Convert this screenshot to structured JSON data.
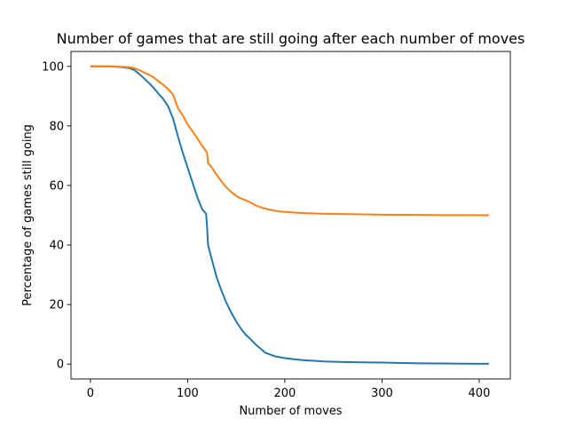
{
  "chart_data": {
    "type": "line",
    "title": "Number of games that are still going after each number of moves",
    "xlabel": "Number of moves",
    "ylabel": "Percentage of games still going",
    "xlim": [
      -20,
      432
    ],
    "ylim": [
      -5,
      105
    ],
    "xticks": [
      0,
      100,
      200,
      300,
      400
    ],
    "yticks": [
      0,
      20,
      40,
      60,
      80,
      100
    ],
    "grid": false,
    "legend": "none",
    "series": [
      {
        "color": "#1f77b4",
        "x": [
          0,
          10,
          20,
          30,
          40,
          45,
          50,
          55,
          60,
          65,
          70,
          75,
          80,
          85,
          90,
          95,
          100,
          105,
          110,
          115,
          119,
          120,
          121,
          125,
          130,
          135,
          140,
          145,
          150,
          155,
          160,
          165,
          170,
          175,
          180,
          190,
          200,
          210,
          220,
          230,
          240,
          260,
          280,
          300,
          320,
          340,
          360,
          380,
          400,
          410
        ],
        "values": [
          100,
          100,
          100,
          99.8,
          99.4,
          98.8,
          97.5,
          96,
          94.5,
          92.8,
          90.8,
          89,
          86.5,
          82.5,
          76.5,
          71,
          66,
          61,
          56,
          52,
          50.5,
          46,
          40,
          35,
          29,
          24.5,
          20.5,
          17.2,
          14.3,
          11.8,
          9.8,
          8.3,
          6.6,
          5.2,
          3.8,
          2.6,
          2,
          1.6,
          1.3,
          1.1,
          0.9,
          0.7,
          0.6,
          0.5,
          0.35,
          0.25,
          0.2,
          0.15,
          0.1,
          0.1
        ]
      },
      {
        "color": "#ff7f0e",
        "x": [
          0,
          10,
          20,
          30,
          40,
          45,
          50,
          55,
          60,
          65,
          70,
          75,
          80,
          85,
          90,
          95,
          100,
          105,
          110,
          115,
          119,
          120,
          121,
          125,
          130,
          135,
          140,
          145,
          150,
          155,
          160,
          165,
          170,
          175,
          180,
          190,
          200,
          210,
          220,
          230,
          240,
          260,
          280,
          300,
          320,
          340,
          360,
          380,
          400,
          410
        ],
        "values": [
          100,
          100,
          100,
          99.9,
          99.7,
          99.4,
          98.8,
          98,
          97.2,
          96.3,
          95,
          93.8,
          92.3,
          90.5,
          86,
          83.5,
          80.5,
          78.2,
          75.8,
          73.3,
          71.5,
          71,
          67.5,
          66,
          63.5,
          61.3,
          59.3,
          57.8,
          56.5,
          55.6,
          55,
          54.2,
          53.3,
          52.7,
          52.2,
          51.5,
          51.1,
          50.9,
          50.7,
          50.6,
          50.5,
          50.4,
          50.3,
          50.2,
          50.15,
          50.1,
          50.05,
          50.02,
          50,
          50
        ]
      }
    ]
  }
}
